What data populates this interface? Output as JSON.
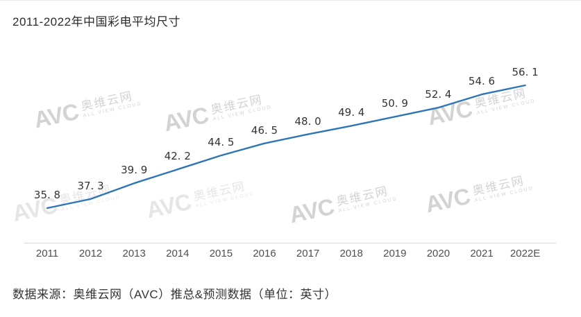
{
  "title": "2011-2022年中国彩电平均尺寸",
  "source_note": "数据来源：奥维云网（AVC）推总&预测数据（单位：英寸）",
  "watermark": {
    "logo": "AVC",
    "cn": "奥维云网",
    "en": "ALL VIEW CLOUD"
  },
  "colors": {
    "line": "#2e75b6",
    "axis": "#d9d9d9",
    "title_text": "#2b2b2b",
    "label_text": "#333333",
    "tick_text": "#4f4f4f"
  },
  "chart_data": {
    "type": "line",
    "title": "2011-2022年中国彩电平均尺寸",
    "categories": [
      "2011",
      "2012",
      "2013",
      "2014",
      "2015",
      "2016",
      "2017",
      "2018",
      "2019",
      "2020",
      "2021",
      "2022E"
    ],
    "values": [
      35.8,
      37.3,
      39.9,
      42.2,
      44.5,
      46.5,
      48.0,
      49.4,
      50.9,
      52.4,
      54.6,
      56.1
    ],
    "series_name": "中国彩电平均尺寸",
    "unit": "英寸",
    "xlabel": "",
    "ylabel": "",
    "ylim": [
      34,
      58
    ],
    "grid": false,
    "legend": false,
    "point_markers": false,
    "data_labels_shown": true,
    "source": "奥维云网（AVC）推总&预测数据"
  }
}
